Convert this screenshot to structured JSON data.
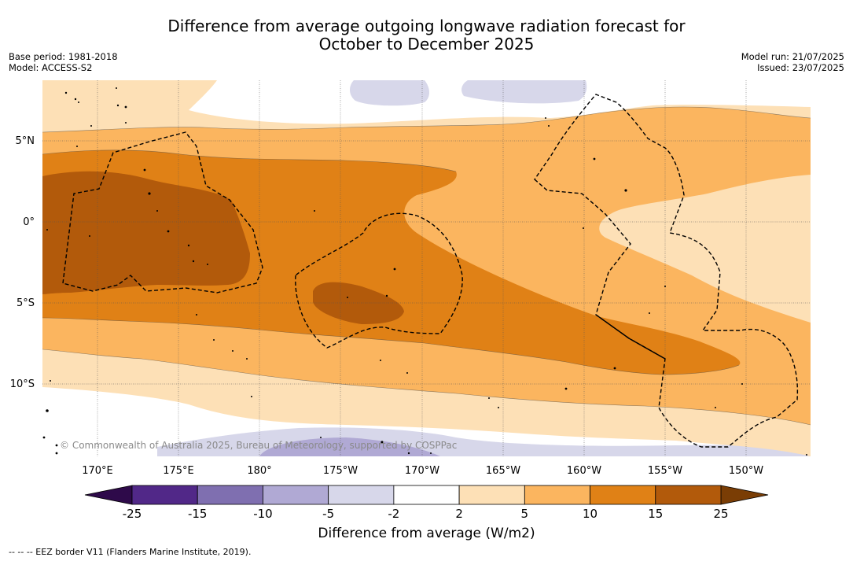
{
  "title": {
    "line1": "Difference from average outgoing longwave radiation forecast for",
    "line2": "October to December 2025"
  },
  "meta": {
    "base_period": "Base period: 1981-2018",
    "model": "Model: ACCESS-S2",
    "model_run": "Model run: 21/07/2025",
    "issued": "Issued: 23/07/2025"
  },
  "map": {
    "lat_labels": [
      "5°N",
      "0°",
      "5°S",
      "10°S"
    ],
    "lon_labels": [
      "170°E",
      "175°E",
      "180°",
      "175°W",
      "170°W",
      "165°W",
      "160°W",
      "155°W",
      "150°W"
    ],
    "copyright": "© Commonwealth of Australia 2025, Bureau of Meteorology, supported by COSPPac"
  },
  "colorbar": {
    "ticks": [
      "-25",
      "-15",
      "-10",
      "-5",
      "-2",
      "2",
      "5",
      "10",
      "15",
      "25"
    ],
    "colors": [
      "#512888",
      "#7f6fb0",
      "#b0a9d4",
      "#d7d7ea",
      "#ffffff",
      "#fde0b6",
      "#fbb55f",
      "#e08116",
      "#b25a0b"
    ],
    "under_color": "#2e0a4a",
    "over_color": "#7a3d05",
    "label": "Difference from average (W/m2)"
  },
  "footnote": "--  --  -- EEZ border V11 (Flanders Marine Institute, 2019)."
}
